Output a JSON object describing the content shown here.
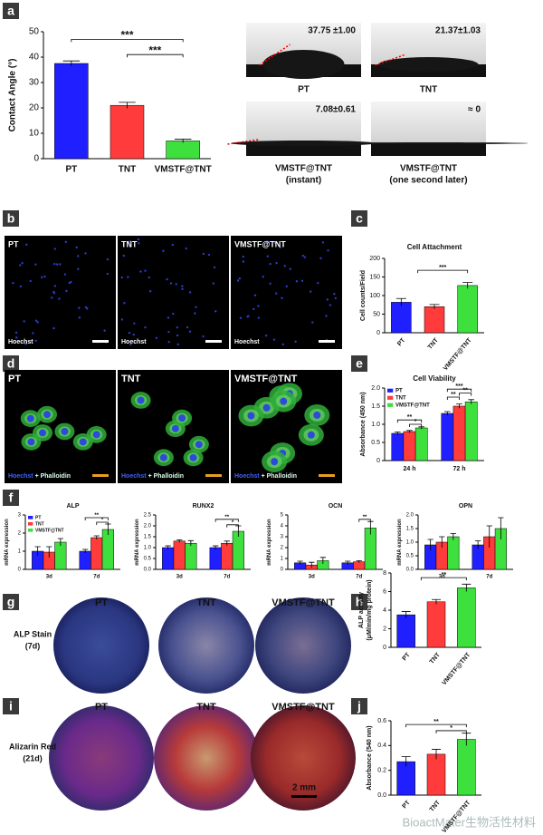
{
  "panel_labels": [
    "a",
    "b",
    "c",
    "d",
    "e",
    "f",
    "g",
    "h",
    "i",
    "j"
  ],
  "chart_data": [
    {
      "type": "bar",
      "y_label": [
        "Contact Angle (°)"
      ],
      "categories": [
        "PT",
        "TNT",
        "VMSTF@TNT"
      ],
      "values": [
        37.5,
        21,
        7
      ],
      "errors": [
        1,
        1.2,
        0.7
      ],
      "colors": [
        "#1f1fff",
        "#ff3b3b",
        "#3de03d"
      ],
      "ylim": [
        0,
        50
      ],
      "yticks": [
        0,
        10,
        20,
        30,
        40,
        50
      ],
      "annotations": [
        "***",
        "***"
      ]
    },
    {
      "type": "bar",
      "title": "Cell Attachment",
      "y_label": [
        "Cell counts/Field"
      ],
      "categories": [
        "PT",
        "TNT",
        "VMSTF@TNT"
      ],
      "values": [
        82,
        70,
        127
      ],
      "errors": [
        10,
        6,
        8
      ],
      "colors": [
        "#1f1fff",
        "#ff3b3b",
        "#3de03d"
      ],
      "ylim": [
        0,
        200
      ],
      "yticks": [
        0,
        50,
        100,
        150,
        200
      ],
      "annotations": [
        "***"
      ]
    },
    {
      "type": "grouped_bar",
      "title": "Cell Viability",
      "y_label": [
        "Absorbance (450 nm)"
      ],
      "categories": [
        "24 h",
        "72 h"
      ],
      "series": [
        {
          "name": "PT",
          "color": "#1f1fff",
          "values": [
            0.75,
            1.3
          ],
          "errors": [
            0.04,
            0.05
          ]
        },
        {
          "name": "TNT",
          "color": "#ff3b3b",
          "values": [
            0.8,
            1.5
          ],
          "errors": [
            0.03,
            0.06
          ]
        },
        {
          "name": "VMSTF@TNT",
          "color": "#3de03d",
          "values": [
            0.9,
            1.62
          ],
          "errors": [
            0.03,
            0.06
          ]
        }
      ],
      "ylim": [
        0,
        2
      ],
      "yticks": [
        0,
        0.5,
        {
          "value": 1,
          "label": "1.0"
        },
        1.5,
        {
          "value": 2,
          "label": "2.0"
        }
      ],
      "legend": "upper-left",
      "annotations": [
        "**",
        "*",
        "***",
        "**",
        "**"
      ]
    },
    {
      "type": "grouped_bar",
      "title": "ALP",
      "y_label": [
        "mRNA expression"
      ],
      "categories": [
        "3d",
        "7d"
      ],
      "series": [
        {
          "name": "PT",
          "color": "#1f1fff",
          "values": [
            1.0,
            1.0
          ],
          "errors": [
            0.25,
            0.1
          ]
        },
        {
          "name": "TNT",
          "color": "#ff3b3b",
          "values": [
            0.95,
            1.75
          ],
          "errors": [
            0.3,
            0.1
          ]
        },
        {
          "name": "VMSTF@TNT",
          "color": "#3de03d",
          "values": [
            1.5,
            2.2
          ],
          "errors": [
            0.2,
            0.3
          ]
        }
      ],
      "ylim": [
        0,
        3
      ],
      "yticks": [
        0,
        1,
        2,
        3
      ],
      "legend": "upper-left",
      "annotations": [
        "**",
        "*"
      ]
    },
    {
      "type": "grouped_bar",
      "title": "RUNX2",
      "y_label": [
        "mRNA expression"
      ],
      "categories": [
        "3d",
        "7d"
      ],
      "series": [
        {
          "name": "PT",
          "color": "#1f1fff",
          "values": [
            1.0,
            1.0
          ],
          "errors": [
            0.08,
            0.08
          ]
        },
        {
          "name": "TNT",
          "color": "#ff3b3b",
          "values": [
            1.3,
            1.2
          ],
          "errors": [
            0.06,
            0.1
          ]
        },
        {
          "name": "VMSTF@TNT",
          "color": "#3de03d",
          "values": [
            1.2,
            1.75
          ],
          "errors": [
            0.12,
            0.25
          ]
        }
      ],
      "ylim": [
        0,
        2.5
      ],
      "yticks": [
        {
          "value": 0,
          "label": "0.0"
        },
        0.5,
        {
          "value": 1,
          "label": "1.0"
        },
        1.5,
        {
          "value": 2,
          "label": "2.0"
        },
        2.5
      ],
      "annotations": [
        "**",
        "*"
      ]
    },
    {
      "type": "grouped_bar",
      "title": "OCN",
      "y_label": [
        "mRNA expression"
      ],
      "categories": [
        "3d",
        "7d"
      ],
      "series": [
        {
          "name": "PT",
          "color": "#1f1fff",
          "values": [
            0.6,
            0.6
          ],
          "errors": [
            0.15,
            0.15
          ]
        },
        {
          "name": "TNT",
          "color": "#ff3b3b",
          "values": [
            0.4,
            0.7
          ],
          "errors": [
            0.25,
            0.1
          ]
        },
        {
          "name": "VMSTF@TNT",
          "color": "#3de03d",
          "values": [
            0.8,
            3.8
          ],
          "errors": [
            0.3,
            0.6
          ]
        }
      ],
      "ylim": [
        0,
        5
      ],
      "yticks": [
        0,
        1,
        2,
        3,
        4,
        5
      ],
      "annotations": [
        "**"
      ]
    },
    {
      "type": "grouped_bar",
      "title": "OPN",
      "y_label": [
        "mRNA expression"
      ],
      "categories": [
        "3d",
        "7d"
      ],
      "series": [
        {
          "name": "PT",
          "color": "#1f1fff",
          "values": [
            0.9,
            0.9
          ],
          "errors": [
            0.2,
            0.15
          ]
        },
        {
          "name": "TNT",
          "color": "#ff3b3b",
          "values": [
            1.0,
            1.2
          ],
          "errors": [
            0.2,
            0.4
          ]
        },
        {
          "name": "VMSTF@TNT",
          "color": "#3de03d",
          "values": [
            1.2,
            1.5
          ],
          "errors": [
            0.12,
            0.4
          ]
        }
      ],
      "ylim": [
        0,
        2
      ],
      "yticks": [
        {
          "value": 0,
          "label": "0.0"
        },
        0.5,
        {
          "value": 1,
          "label": "1.0"
        },
        1.5,
        {
          "value": 2,
          "label": "2.0"
        }
      ]
    },
    {
      "type": "bar",
      "y_label": [
        "ALP activity",
        "(μM/min/mg protein)"
      ],
      "categories": [
        "PT",
        "TNT",
        "VMSTF@TNT"
      ],
      "values": [
        3.5,
        4.9,
        6.4
      ],
      "errors": [
        0.35,
        0.25,
        0.4
      ],
      "colors": [
        "#1f1fff",
        "#ff3b3b",
        "#3de03d"
      ],
      "ylim": [
        0,
        8
      ],
      "yticks": [
        0,
        2,
        4,
        6,
        8
      ],
      "annotations": [
        "**"
      ]
    },
    {
      "type": "bar",
      "y_label": [
        "Absorbance (540 nm)"
      ],
      "categories": [
        "PT",
        "TNT",
        "VMSTF@TNT"
      ],
      "values": [
        0.27,
        0.33,
        0.45
      ],
      "errors": [
        0.04,
        0.04,
        0.05
      ],
      "colors": [
        "#1f1fff",
        "#ff3b3b",
        "#3de03d"
      ],
      "ylim": [
        0,
        0.6
      ],
      "yticks": [
        {
          "value": 0,
          "label": "0.0"
        },
        0.2,
        0.4,
        0.6
      ],
      "annotations": [
        "**",
        "*"
      ]
    }
  ],
  "contact_angle_images": [
    {
      "value": "37.75 ±1.00",
      "label": [
        "PT"
      ]
    },
    {
      "value": "21.37±1.03",
      "label": [
        "TNT"
      ]
    },
    {
      "value": "7.08±0.61",
      "label": [
        "VMSTF@TNT",
        "(instant)"
      ]
    },
    {
      "value": "≈ 0",
      "label": [
        "VMSTF@TNT",
        "(one second later)"
      ]
    }
  ],
  "hoechst_images": {
    "titles": [
      "PT",
      "TNT",
      "VMSTF@TNT"
    ],
    "stain": "Hoechst"
  },
  "phalloidin_images": {
    "titles": [
      "PT",
      "TNT",
      "VMSTF@TNT"
    ],
    "stain": "Hoechst",
    "stain_2": "+ Phalloidin"
  },
  "alp_stain_images": {
    "titles": [
      "PT",
      "TNT",
      "VMSTF@TNT"
    ],
    "label": [
      "ALP Stain",
      "(7d)"
    ]
  },
  "alizarin_images": {
    "titles": [
      "PT",
      "TNT",
      "VMSTF@TNT"
    ],
    "label": [
      "Alizarin Red",
      "(21d)"
    ],
    "scale": "2 mm"
  },
  "watermark": "BioactMater生物活性材料"
}
